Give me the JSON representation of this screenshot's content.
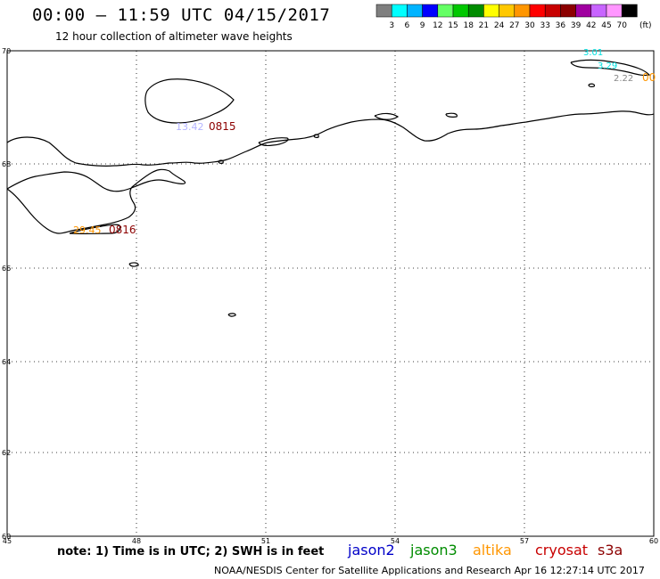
{
  "header": {
    "title": "00:00 – 11:59 UTC 04/15/2017",
    "subtitle": "12 hour collection of altimeter wave heights"
  },
  "colorbar": {
    "unit_label": "(ft)",
    "ticks": [
      "3",
      "6",
      "9",
      "12",
      "15",
      "18",
      "21",
      "24",
      "27",
      "30",
      "33",
      "36",
      "39",
      "42",
      "45",
      "70"
    ],
    "colors": [
      "#7f7f7f",
      "#00ffff",
      "#00b4ff",
      "#0000ff",
      "#64ff64",
      "#00c800",
      "#008c00",
      "#ffff00",
      "#ffc800",
      "#ff9600",
      "#ff0000",
      "#c80000",
      "#8c0000",
      "#a000a0",
      "#c864ff",
      "#ff96ff",
      "#000000"
    ]
  },
  "axes": {
    "lat_ticks": [
      "70",
      "68",
      "66",
      "64",
      "62",
      "60"
    ],
    "lon_ticks": [
      "45",
      "48",
      "51",
      "54",
      "57",
      "60"
    ]
  },
  "labels": [
    {
      "text": "3.01",
      "color": "#00e0e0"
    },
    {
      "text": "3.29",
      "color": "#00e0e0"
    },
    {
      "text": "2.22",
      "color": "#888888"
    },
    {
      "text": "00",
      "color": "#ff9600"
    },
    {
      "text": "13.42",
      "color": "#b4b4ff"
    },
    {
      "text": "0815",
      "color": "#8c0000"
    },
    {
      "text": "29.45",
      "color": "#ff9600"
    },
    {
      "text": "0816",
      "color": "#8c0000"
    }
  ],
  "footer": {
    "note": "note: 1) Time is in UTC; 2) SWH is in feet",
    "satellites": [
      {
        "name": "jason2",
        "color": "#0000c8"
      },
      {
        "name": "jason3",
        "color": "#008c00"
      },
      {
        "name": "altika",
        "color": "#ff9600"
      },
      {
        "name": "cryosat",
        "color": "#c80000"
      },
      {
        "name": "s3a",
        "color": "#8c0000"
      }
    ],
    "credit": "NOAA/NESDIS Center for Satellite Applications and Research    Apr 16 12:27:14 UTC 2017"
  }
}
